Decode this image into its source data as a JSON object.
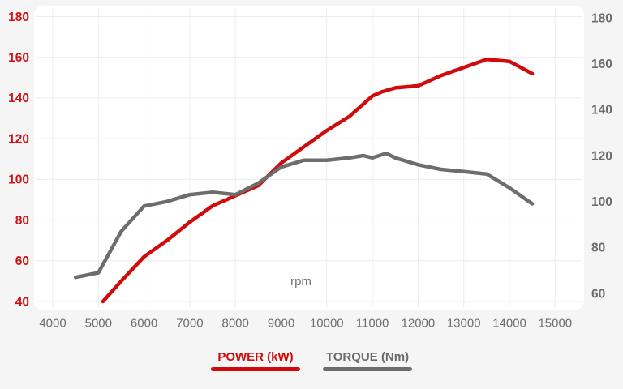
{
  "page": {
    "background": "#f5f5f6",
    "panel_background": "#ffffff",
    "gridline_color": "#ececee"
  },
  "chart_data": {
    "type": "line",
    "title": "",
    "xlabel": "rpm",
    "grid": true,
    "legend_position": "bottom",
    "x_range": [
      4000,
      15000
    ],
    "x_ticks": [
      4000,
      5000,
      6000,
      7000,
      8000,
      9000,
      10000,
      11000,
      12000,
      13000,
      14000,
      15000
    ],
    "left_axis": {
      "name": "POWER (kW)",
      "color": "#d11212",
      "range": [
        40,
        180
      ],
      "ticks": [
        40,
        60,
        80,
        100,
        120,
        140,
        160,
        180
      ]
    },
    "right_axis": {
      "name": "TORQUE (Nm)",
      "color": "#6e6e6e",
      "range": [
        60,
        180
      ],
      "ticks": [
        60,
        80,
        100,
        120,
        140,
        160,
        180
      ]
    },
    "series": [
      {
        "name": "POWER (kW)",
        "slug": "power",
        "color": "#d10b0b",
        "axis": "left",
        "unit": "kW",
        "points": [
          [
            5100,
            40
          ],
          [
            5500,
            50
          ],
          [
            6000,
            62
          ],
          [
            6500,
            70
          ],
          [
            7000,
            79
          ],
          [
            7500,
            87
          ],
          [
            8000,
            92
          ],
          [
            8500,
            97
          ],
          [
            9000,
            108
          ],
          [
            9500,
            116
          ],
          [
            10000,
            124
          ],
          [
            10500,
            131
          ],
          [
            11000,
            141
          ],
          [
            11200,
            143
          ],
          [
            11500,
            145
          ],
          [
            12000,
            146
          ],
          [
            12500,
            151
          ],
          [
            13000,
            155
          ],
          [
            13500,
            159
          ],
          [
            14000,
            158
          ],
          [
            14500,
            152
          ]
        ]
      },
      {
        "name": "TORQUE (Nm)",
        "slug": "torque",
        "color": "#6d6d6d",
        "axis": "right",
        "unit": "Nm",
        "points": [
          [
            4500,
            67
          ],
          [
            5000,
            69
          ],
          [
            5500,
            87
          ],
          [
            6000,
            98
          ],
          [
            6500,
            100
          ],
          [
            7000,
            103
          ],
          [
            7500,
            104
          ],
          [
            8000,
            103
          ],
          [
            8500,
            108
          ],
          [
            9000,
            115
          ],
          [
            9500,
            118
          ],
          [
            10000,
            118
          ],
          [
            10500,
            119
          ],
          [
            10800,
            120
          ],
          [
            11000,
            119
          ],
          [
            11300,
            121
          ],
          [
            11500,
            119
          ],
          [
            12000,
            116
          ],
          [
            12500,
            114
          ],
          [
            13000,
            113
          ],
          [
            13500,
            112
          ],
          [
            14000,
            106
          ],
          [
            14500,
            99
          ]
        ]
      }
    ]
  }
}
